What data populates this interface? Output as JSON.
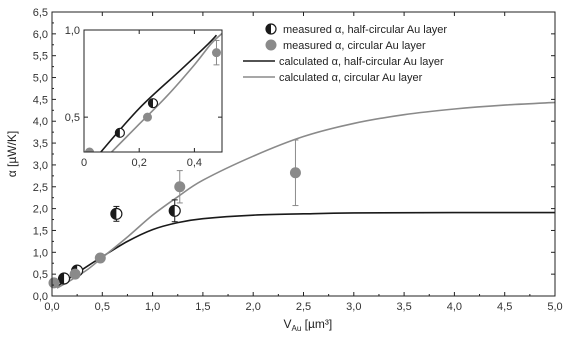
{
  "chart_data": [
    {
      "type": "scatter",
      "role": "main",
      "xlabel": {
        "base": "V",
        "sub": "Au",
        "unit": " [µm³]"
      },
      "ylabel": "α [µW/K]",
      "xlim": [
        0,
        5
      ],
      "ylim": [
        0,
        6.5
      ],
      "xticks": [
        "0,0",
        "0,5",
        "1,0",
        "1,5",
        "2,0",
        "2,5",
        "3,0",
        "3,5",
        "4,0",
        "4,5",
        "5,0"
      ],
      "yticks": [
        "0,0",
        "0,5",
        "1,0",
        "1,5",
        "2,0",
        "2,5",
        "3,0",
        "3,5",
        "4,0",
        "4,5",
        "5,0",
        "5,5",
        "6,0",
        "6,5"
      ],
      "grid": false,
      "legend_position": "top-right",
      "colors": {
        "half": "#1a1a1a",
        "circular": "#8a8a8a",
        "calc_half": "#1a1a1a",
        "calc_circ": "#8a8a8a"
      },
      "series": [
        {
          "name": "measured α, half-circular Au layer",
          "kind": "points-half-filled",
          "points": [
            {
              "x": 0.12,
              "y": 0.4,
              "err": 0.06
            },
            {
              "x": 0.25,
              "y": 0.58,
              "err": 0.05
            },
            {
              "x": 0.64,
              "y": 1.88,
              "err": 0.17
            },
            {
              "x": 1.22,
              "y": 1.95,
              "err": 0.25
            }
          ]
        },
        {
          "name": "measured α, circular Au layer",
          "kind": "points-filled",
          "points": [
            {
              "x": 0.02,
              "y": 0.3,
              "err": 0.03
            },
            {
              "x": 0.23,
              "y": 0.5,
              "err": 0.04
            },
            {
              "x": 0.48,
              "y": 0.87,
              "err": 0.05
            },
            {
              "x": 1.27,
              "y": 2.5,
              "err": 0.37
            },
            {
              "x": 2.42,
              "y": 2.82,
              "err": 0.75
            }
          ]
        },
        {
          "name": "calculated α, half-circular Au layer",
          "kind": "line",
          "points": [
            [
              0.05,
              0.22
            ],
            [
              0.2,
              0.45
            ],
            [
              0.35,
              0.68
            ],
            [
              0.5,
              0.9
            ],
            [
              0.75,
              1.25
            ],
            [
              1.0,
              1.52
            ],
            [
              1.25,
              1.68
            ],
            [
              1.5,
              1.77
            ],
            [
              2.0,
              1.85
            ],
            [
              2.5,
              1.88
            ],
            [
              3.0,
              1.9
            ],
            [
              4.0,
              1.91
            ],
            [
              5.0,
              1.91
            ]
          ]
        },
        {
          "name": "calculated α, circular Au layer",
          "kind": "line",
          "points": [
            [
              0.05,
              0.18
            ],
            [
              0.2,
              0.38
            ],
            [
              0.35,
              0.6
            ],
            [
              0.5,
              0.88
            ],
            [
              0.75,
              1.35
            ],
            [
              1.0,
              1.85
            ],
            [
              1.25,
              2.27
            ],
            [
              1.5,
              2.65
            ],
            [
              2.0,
              3.2
            ],
            [
              2.5,
              3.65
            ],
            [
              3.0,
              3.95
            ],
            [
              3.5,
              4.15
            ],
            [
              4.0,
              4.28
            ],
            [
              4.5,
              4.37
            ],
            [
              5.0,
              4.43
            ]
          ]
        }
      ]
    },
    {
      "type": "scatter",
      "role": "inset",
      "xlim": [
        0,
        0.5
      ],
      "ylim": [
        0.3,
        1.0
      ],
      "xticks": [
        "0",
        "0,2",
        "0,4"
      ],
      "yticks": [
        "0,5",
        "1,0"
      ],
      "series": [
        {
          "name": "measured α, half-circular Au layer",
          "kind": "points-half-filled",
          "points": [
            {
              "x": 0.13,
              "y": 0.41,
              "err": 0.015
            },
            {
              "x": 0.25,
              "y": 0.58,
              "err": 0.015
            }
          ]
        },
        {
          "name": "measured α, circular Au layer",
          "kind": "points-filled",
          "points": [
            {
              "x": 0.02,
              "y": 0.3,
              "err": 0.0
            },
            {
              "x": 0.23,
              "y": 0.5,
              "err": 0.0
            },
            {
              "x": 0.48,
              "y": 0.87,
              "err": 0.07
            }
          ]
        },
        {
          "name": "calculated α, half-circular Au layer",
          "kind": "line",
          "points": [
            [
              0.05,
              0.28
            ],
            [
              0.2,
              0.55
            ],
            [
              0.35,
              0.77
            ],
            [
              0.45,
              0.92
            ],
            [
              0.48,
              0.97
            ]
          ]
        },
        {
          "name": "calculated α, circular Au layer",
          "kind": "line",
          "points": [
            [
              0.1,
              0.3
            ],
            [
              0.2,
              0.46
            ],
            [
              0.3,
              0.62
            ],
            [
              0.4,
              0.8
            ],
            [
              0.46,
              0.92
            ],
            [
              0.5,
              0.98
            ]
          ]
        }
      ]
    }
  ],
  "legend": [
    {
      "label": "measured α, half-circular Au layer",
      "marker": "half"
    },
    {
      "label": "measured α, circular Au layer",
      "marker": "circle"
    },
    {
      "label": "calculated α, half-circular Au layer",
      "marker": "line-dark"
    },
    {
      "label": "calculated α, circular Au layer",
      "marker": "line-light"
    }
  ]
}
